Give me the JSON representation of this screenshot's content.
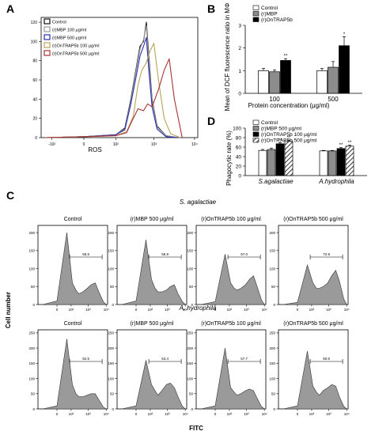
{
  "chart_data": [
    {
      "type": "line",
      "panel_label": "A",
      "xlabel": "ROS",
      "ylabel": "",
      "x_ticks": [
        "-10²",
        "0",
        "10²",
        "10³",
        "10⁴"
      ],
      "y_ticks": [
        "0",
        "20",
        "40",
        "60",
        "80",
        "100",
        "120"
      ],
      "ylim": [
        0,
        125
      ],
      "x_scale": "biexponential",
      "legend_position": "top-left",
      "series": [
        {
          "name": "Control",
          "color": "#111111",
          "x": [
            -150,
            0,
            100,
            180,
            260,
            350,
            450,
            550,
            650,
            750,
            900,
            1200,
            2000,
            4000
          ],
          "y": [
            0,
            1,
            3,
            10,
            40,
            70,
            95,
            100,
            120,
            85,
            40,
            12,
            2,
            0
          ]
        },
        {
          "name": "(r)MBP 100 μg/ml",
          "color": "#999999",
          "x": [
            -150,
            0,
            100,
            180,
            260,
            350,
            450,
            550,
            650,
            750,
            900,
            1200,
            2000,
            4000
          ],
          "y": [
            0,
            1,
            3,
            9,
            38,
            68,
            92,
            102,
            116,
            80,
            38,
            11,
            2,
            0
          ]
        },
        {
          "name": "(r)MBP 500 μg/ml",
          "color": "#2a2fb5",
          "x": [
            -150,
            0,
            100,
            180,
            260,
            350,
            450,
            550,
            650,
            750,
            900,
            1200,
            2000,
            4000
          ],
          "y": [
            0,
            1,
            3,
            8,
            35,
            62,
            85,
            95,
            104,
            70,
            32,
            9,
            1,
            0
          ]
        },
        {
          "name": "(r)OnTRAP5b 100 μg/ml",
          "color": "#b8a35a",
          "x": [
            -150,
            0,
            100,
            200,
            300,
            400,
            500,
            650,
            800,
            1000,
            1300,
            1800,
            2600,
            4500
          ],
          "y": [
            0,
            1,
            2,
            6,
            22,
            55,
            70,
            78,
            90,
            98,
            60,
            20,
            4,
            0
          ]
        },
        {
          "name": "(r)OnTRAP5b 500 μg/ml",
          "color": "#a83333",
          "x": [
            -150,
            0,
            100,
            200,
            300,
            400,
            550,
            700,
            900,
            1300,
            1800,
            2400,
            3200,
            5000
          ],
          "y": [
            0,
            1,
            2,
            5,
            20,
            30,
            28,
            35,
            32,
            50,
            70,
            82,
            40,
            0
          ]
        }
      ]
    },
    {
      "type": "bar",
      "panel_label": "B",
      "ylabel": "Mean of DCF fluorescence ratio in MΦ",
      "xlabel": "Protein concentration (μg/ml)",
      "categories": [
        "100",
        "500"
      ],
      "y_ticks": [
        "0",
        "1",
        "2",
        "3"
      ],
      "ylim": [
        0,
        3
      ],
      "legend_position": "top-left",
      "series": [
        {
          "name": "Control",
          "color": "#ffffff",
          "values": [
            1.0,
            1.0
          ],
          "errors": [
            0.1,
            0.1
          ],
          "sig": [
            "",
            ""
          ]
        },
        {
          "name": "(r)MBP",
          "color": "#8c8c8c",
          "values": [
            0.95,
            1.15
          ],
          "errors": [
            0.08,
            0.25
          ],
          "sig": [
            "",
            ""
          ]
        },
        {
          "name": "(r)OnTRAP5b",
          "color": "#000000",
          "values": [
            1.45,
            2.1
          ],
          "errors": [
            0.08,
            0.4
          ],
          "sig": [
            "**",
            "*"
          ]
        }
      ]
    },
    {
      "type": "bar",
      "panel_label": "D",
      "ylabel": "Phagocytic rate (%)",
      "categories": [
        "S.agalactiae",
        "A.hydrophila"
      ],
      "y_ticks": [
        "0",
        "20",
        "40",
        "60",
        "80",
        "100"
      ],
      "ylim": [
        0,
        100
      ],
      "legend_position": "top-left",
      "series": [
        {
          "name": "Control",
          "color": "#ffffff",
          "values": [
            53,
            52
          ],
          "errors": [
            2,
            1
          ],
          "sig": [
            "",
            ""
          ]
        },
        {
          "name": "(r)MBP 500 μg/ml",
          "color": "#8c8c8c",
          "values": [
            55,
            52
          ],
          "errors": [
            3,
            1
          ],
          "sig": [
            "",
            ""
          ]
        },
        {
          "name": "(r)OnTRAP5b 100 μg/ml",
          "color": "#000000",
          "values": [
            67,
            57
          ],
          "errors": [
            2,
            2
          ],
          "sig": [
            "**",
            "**"
          ]
        },
        {
          "name": "(r)OnTRAP5b 500 μg/ml",
          "color": "hatch",
          "values": [
            72,
            62
          ],
          "errors": [
            2,
            2
          ],
          "sig": [
            "**",
            "**"
          ]
        }
      ]
    },
    {
      "type": "area",
      "panel_label": "C",
      "ylabel": "Cell number",
      "xlabel": "FITC",
      "x_scale": "biexponential",
      "groups": [
        {
          "label": "S. agalactiae",
          "y_ticks": [
            "0",
            "50",
            "100",
            "150",
            "200"
          ],
          "ylim": [
            0,
            220
          ],
          "panels": [
            {
              "title": "Control",
              "gate": "55.5",
              "x": [
                -100,
                0,
                50,
                120,
                200,
                300,
                500,
                900,
                1500,
                2500,
                4000,
                7000,
                10000
              ],
              "y": [
                0,
                10,
                200,
                60,
                40,
                30,
                35,
                45,
                55,
                60,
                35,
                8,
                0
              ]
            },
            {
              "title": "(r)MBP 500 μg/ml",
              "gate": "56.9",
              "x": [
                -100,
                0,
                50,
                120,
                200,
                300,
                500,
                900,
                1500,
                2500,
                4000,
                7000,
                10000
              ],
              "y": [
                0,
                10,
                180,
                70,
                45,
                35,
                35,
                40,
                50,
                55,
                30,
                8,
                0
              ]
            },
            {
              "title": "(r)OnTRAP5b 100 μg/ml",
              "gate": "67.0",
              "x": [
                -100,
                0,
                50,
                120,
                200,
                300,
                500,
                900,
                1500,
                2500,
                4000,
                7000,
                10000
              ],
              "y": [
                0,
                8,
                140,
                60,
                45,
                40,
                45,
                55,
                70,
                80,
                50,
                12,
                0
              ]
            },
            {
              "title": "(r)OnTRAP5b 500 μg/ml",
              "gate": "72.9",
              "x": [
                -100,
                0,
                50,
                120,
                200,
                300,
                500,
                900,
                1500,
                2500,
                4000,
                7000,
                10000
              ],
              "y": [
                0,
                6,
                110,
                60,
                45,
                45,
                50,
                60,
                80,
                95,
                65,
                15,
                0
              ]
            }
          ]
        },
        {
          "label": "A. hydrophila",
          "y_ticks": [
            "0",
            "50",
            "100",
            "150",
            "200",
            "250"
          ],
          "ylim": [
            0,
            260
          ],
          "panels": [
            {
              "title": "Control",
              "gate": "52.5",
              "x": [
                -100,
                0,
                50,
                120,
                200,
                300,
                500,
                900,
                1500,
                2500,
                4000,
                7000,
                10000
              ],
              "y": [
                0,
                10,
                230,
                80,
                50,
                40,
                40,
                45,
                50,
                50,
                30,
                6,
                0
              ]
            },
            {
              "title": "(r)MBP 500 μg/ml",
              "gate": "53.4",
              "x": [
                -100,
                0,
                50,
                120,
                200,
                300,
                500,
                900,
                1500,
                2500,
                4000,
                7000,
                10000
              ],
              "y": [
                0,
                10,
                160,
                80,
                60,
                45,
                60,
                80,
                85,
                70,
                40,
                8,
                0
              ]
            },
            {
              "title": "(r)OnTRAP5b 100 μg/ml",
              "gate": "57.7",
              "x": [
                -100,
                0,
                50,
                120,
                200,
                300,
                500,
                900,
                1500,
                2500,
                4000,
                7000,
                10000
              ],
              "y": [
                0,
                10,
                200,
                70,
                55,
                45,
                50,
                60,
                65,
                60,
                35,
                7,
                0
              ]
            },
            {
              "title": "(r)OnTRAP5b 500 μg/ml",
              "gate": "60.5",
              "x": [
                -100,
                0,
                50,
                120,
                200,
                300,
                500,
                900,
                1500,
                2500,
                4000,
                7000,
                10000
              ],
              "y": [
                0,
                10,
                190,
                75,
                55,
                45,
                60,
                70,
                80,
                75,
                40,
                8,
                0
              ]
            }
          ]
        }
      ],
      "hist_x_ticks": [
        "0",
        "10²",
        "10³",
        "10⁴"
      ]
    }
  ]
}
